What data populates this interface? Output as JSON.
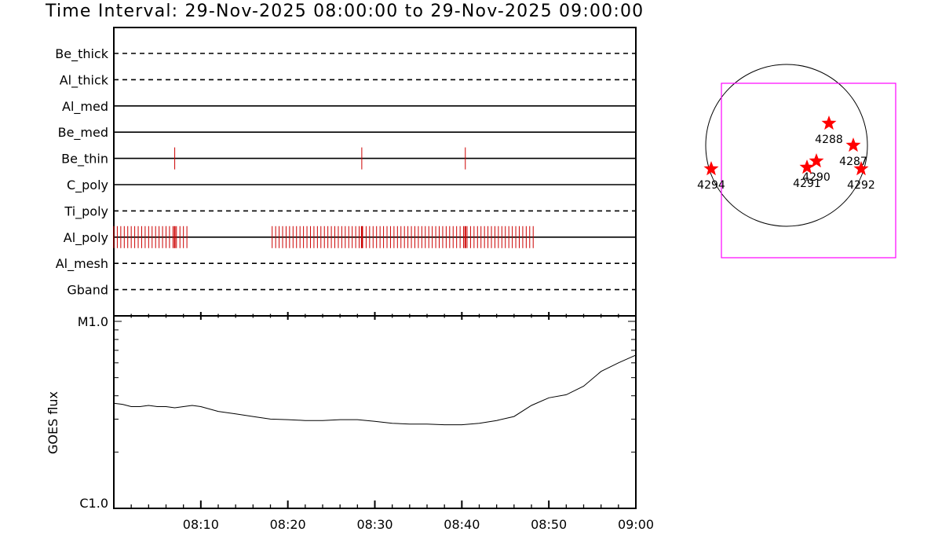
{
  "title": "Time Interval: 29-Nov-2025 08:00:00 to 29-Nov-2025 09:00:00",
  "chart_data": [
    {
      "type": "timeline",
      "x_unit": "minutes after 08:00",
      "xlim": [
        0,
        60
      ],
      "channels": [
        {
          "name": "Be_thick",
          "style": "dashed",
          "events": []
        },
        {
          "name": "Al_thick",
          "style": "dashed",
          "events": []
        },
        {
          "name": "Al_med",
          "style": "solid",
          "events": []
        },
        {
          "name": "Be_med",
          "style": "solid",
          "events": []
        },
        {
          "name": "Be_thin",
          "style": "solid",
          "events": [
            7.0,
            28.5,
            40.4
          ]
        },
        {
          "name": "C_poly",
          "style": "solid",
          "events": []
        },
        {
          "name": "Ti_poly",
          "style": "dashed",
          "events": []
        },
        {
          "name": "Al_poly",
          "style": "solid",
          "events": [
            0.0,
            0.4,
            0.8,
            1.2,
            1.6,
            2.0,
            2.4,
            2.8,
            3.2,
            3.6,
            4.0,
            4.4,
            4.8,
            5.2,
            5.6,
            6.0,
            6.4,
            6.8,
            7.2,
            7.6,
            8.0,
            8.4,
            18.2,
            18.6,
            19.0,
            19.4,
            19.8,
            20.2,
            20.6,
            21.0,
            21.4,
            21.8,
            22.2,
            22.6,
            23.0,
            23.4,
            23.8,
            24.2,
            24.6,
            25.0,
            25.4,
            25.8,
            26.2,
            26.6,
            27.0,
            27.4,
            27.8,
            28.2,
            28.6,
            29.0,
            29.4,
            29.8,
            30.2,
            30.6,
            31.0,
            31.4,
            31.8,
            32.2,
            32.6,
            33.0,
            33.4,
            33.8,
            34.2,
            34.6,
            35.0,
            35.4,
            35.8,
            36.2,
            36.6,
            37.0,
            37.4,
            37.8,
            38.2,
            38.6,
            39.0,
            39.4,
            39.8,
            40.2,
            40.6,
            41.0,
            41.4,
            41.8,
            42.2,
            42.6,
            43.0,
            43.4,
            43.8,
            44.2,
            44.6,
            45.0,
            45.4,
            45.8,
            46.2,
            46.6,
            47.0,
            47.4,
            47.8,
            48.2
          ],
          "bold_events": [
            7.0,
            28.5,
            40.4
          ]
        },
        {
          "name": "Al_mesh",
          "style": "dashed",
          "events": []
        },
        {
          "name": "Gband",
          "style": "dashed",
          "events": []
        }
      ]
    },
    {
      "type": "line",
      "ylabel": "GOES flux",
      "ytick_labels": [
        "M1.0",
        "C1.0"
      ],
      "ylim": [
        1e-06,
        1e-05
      ],
      "yscale": "log",
      "xlim": [
        0,
        60
      ],
      "xtick_labels": [
        "08:10",
        "08:20",
        "08:30",
        "08:40",
        "08:50",
        "09:00"
      ],
      "xticks": [
        10,
        20,
        30,
        40,
        50,
        60
      ],
      "x": [
        0,
        1,
        2,
        3,
        4,
        5,
        6,
        7,
        8,
        9,
        10,
        12,
        14,
        16,
        18,
        20,
        22,
        24,
        26,
        28,
        30,
        32,
        34,
        36,
        38,
        40,
        42,
        44,
        46,
        48,
        50,
        52,
        54,
        56,
        58,
        60
      ],
      "y": [
        3.65e-06,
        3.6e-06,
        3.5e-06,
        3.5e-06,
        3.55e-06,
        3.5e-06,
        3.5e-06,
        3.45e-06,
        3.5e-06,
        3.55e-06,
        3.5e-06,
        3.3e-06,
        3.2e-06,
        3.1e-06,
        3e-06,
        2.98e-06,
        2.95e-06,
        2.95e-06,
        2.98e-06,
        2.98e-06,
        2.92e-06,
        2.85e-06,
        2.82e-06,
        2.82e-06,
        2.8e-06,
        2.8e-06,
        2.85e-06,
        2.95e-06,
        3.1e-06,
        3.55e-06,
        3.9e-06,
        4.05e-06,
        4.5e-06,
        5.4e-06,
        6e-06,
        6.6e-06
      ]
    }
  ],
  "map": {
    "box_color": "#ff00ff",
    "marker_color": "#ff0000",
    "regions": [
      {
        "label": "4288"
      },
      {
        "label": "4287"
      },
      {
        "label": "4290"
      },
      {
        "label": "4291"
      },
      {
        "label": "4292"
      },
      {
        "label": "4294"
      }
    ]
  }
}
